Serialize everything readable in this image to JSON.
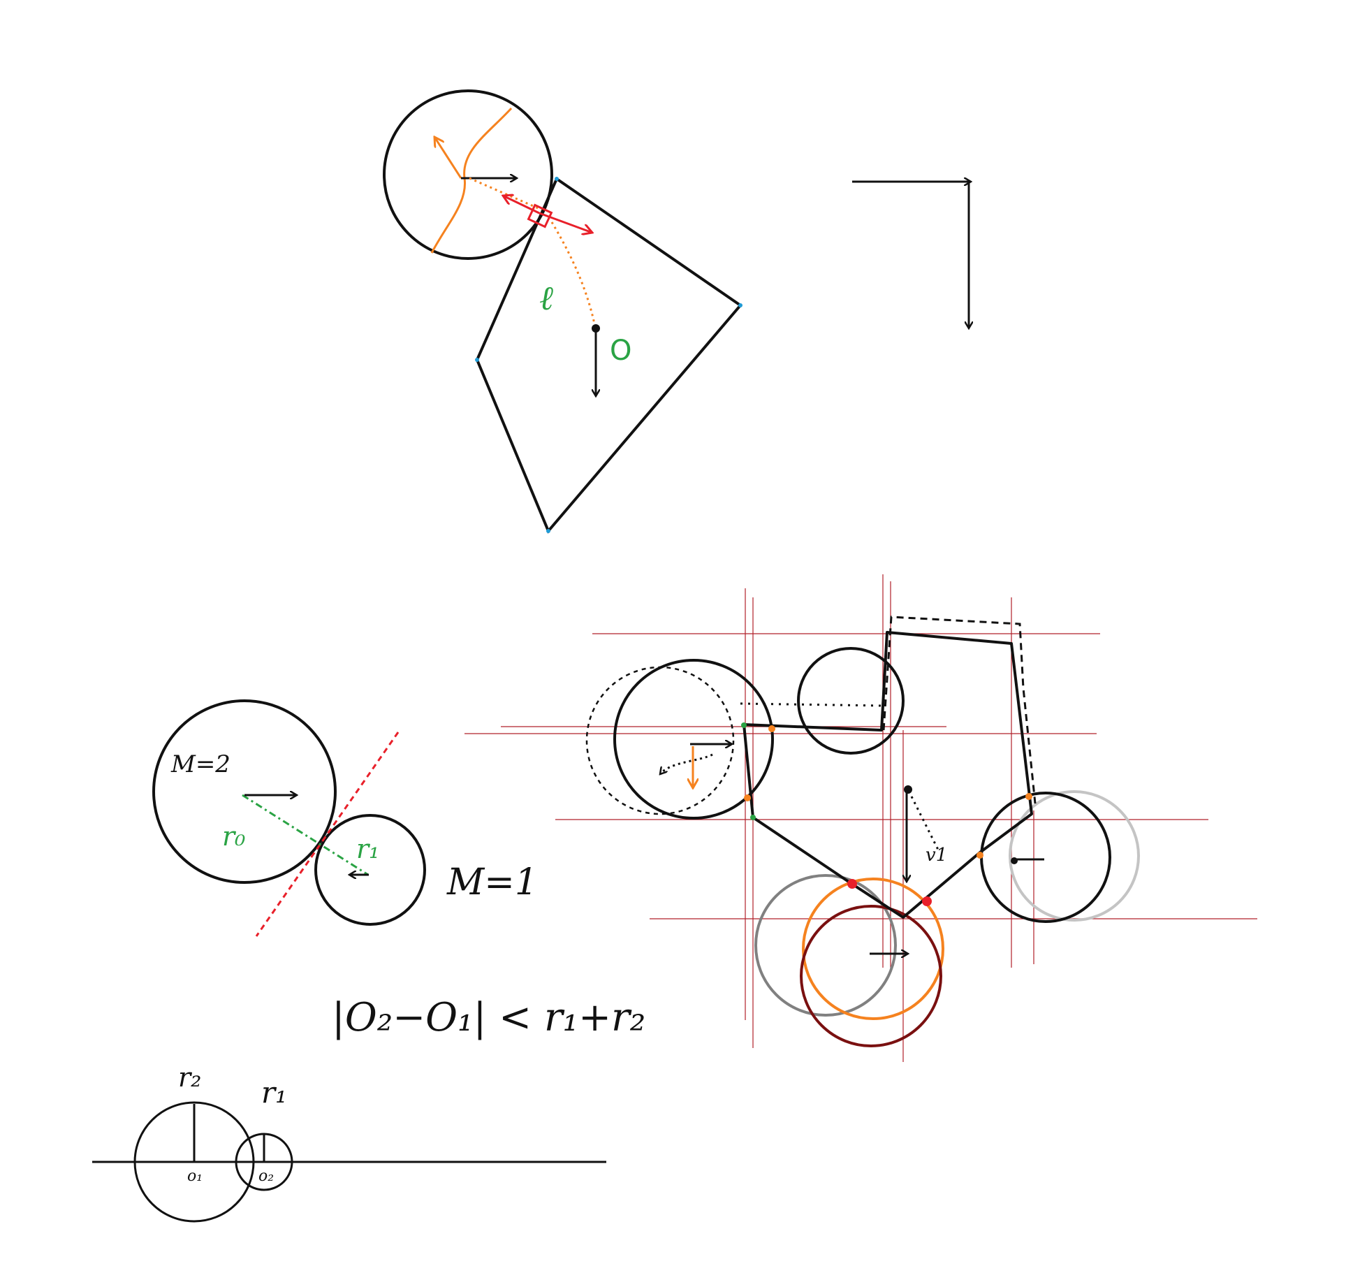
{
  "colors": {
    "ink": "#111111",
    "orange": "#f5821f",
    "red": "#e8202a",
    "green": "#2aa344",
    "guide": "#b0202a",
    "gray": "#808080",
    "lightgray": "#c4c4c4",
    "darkred": "#7a1010",
    "vertex": "#1f9bd6"
  },
  "labels": {
    "ell": "ℓ",
    "o_green": "O",
    "mass_big": "M=2",
    "mass_small": "M=1",
    "r0": "r₀",
    "r1_green": "r₁",
    "inequality": "|O₂−O₁| < r₁+r₂",
    "r2_bottom": "r₂",
    "r1_bottom": "r₁",
    "o1_bottom": "o₁",
    "o2_bottom": "o₂",
    "v1": "v1"
  }
}
